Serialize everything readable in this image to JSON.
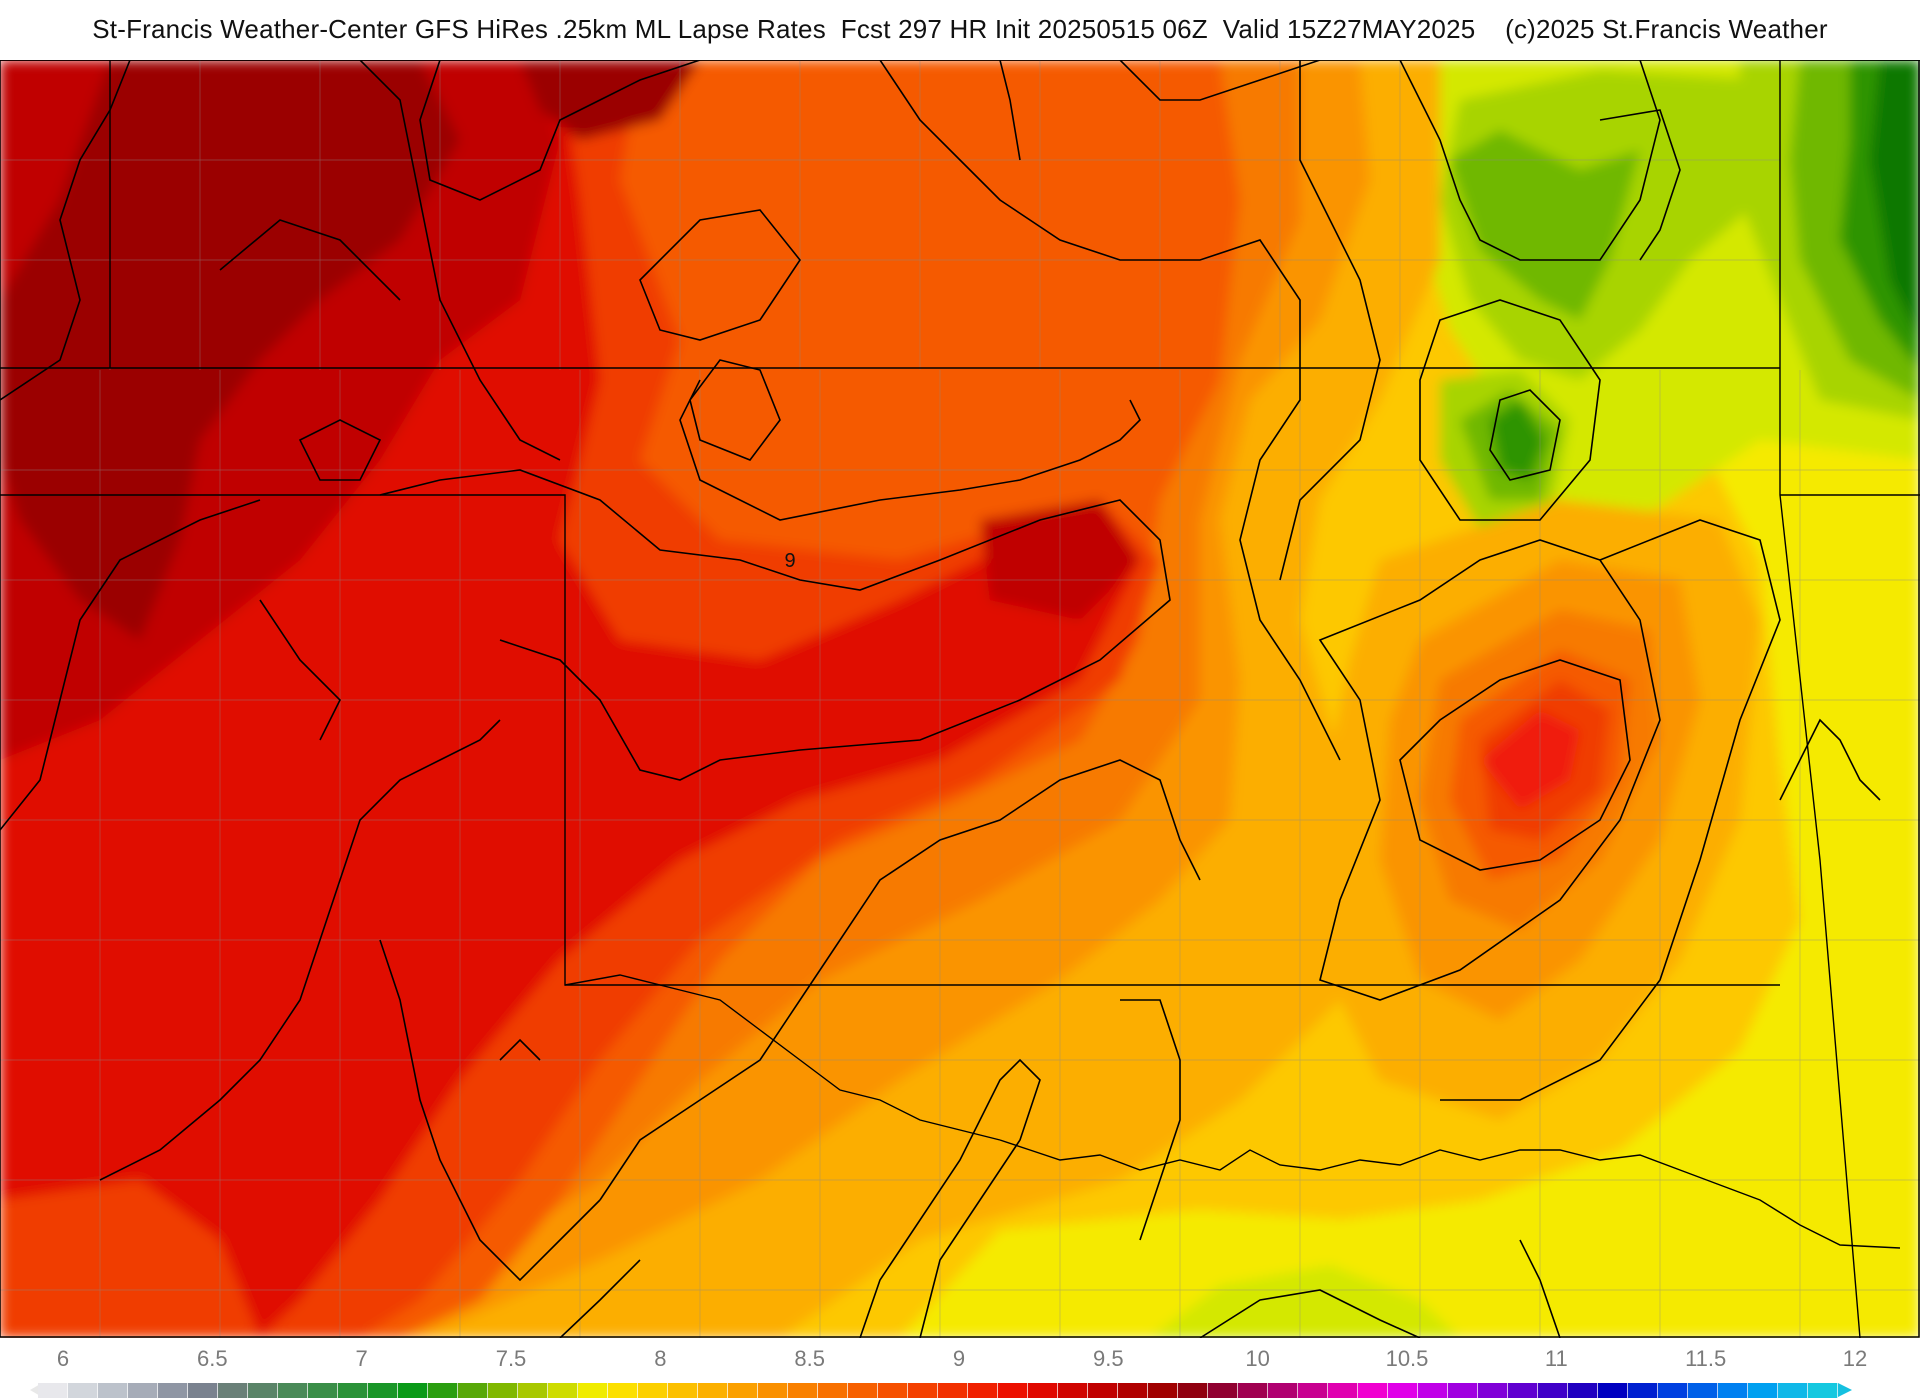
{
  "header": {
    "title": "St-Francis Weather-Center GFS HiRes .25km ML Lapse Rates  Fcst 297 HR Init 20250515 06Z  Valid 15Z27MAY2025    (c)2025 St.Francis Weather"
  },
  "map": {
    "contour_labels": [
      "9"
    ],
    "palette": {
      "dark_red": "#9b0000",
      "deep_red": "#c00000",
      "red": "#e00a00",
      "bright_red": "#f01a10",
      "red_orange": "#f03c00",
      "orange_dark": "#f55a00",
      "orange": "#f77a00",
      "orange_light": "#fa9400",
      "amber": "#fcae00",
      "gold": "#fdc800",
      "yellow": "#f5ea00",
      "yellow_green": "#d4e800",
      "lime": "#a8d400",
      "light_green": "#6fb800",
      "green": "#2e9400",
      "dark_green": "#0b7800",
      "contour": "#000000",
      "boundary": "#000000",
      "county": "#8a8a8a"
    }
  },
  "colorbar": {
    "tick_labels": [
      "6",
      "6.5",
      "7",
      "7.5",
      "8",
      "8.5",
      "9",
      "9.5",
      "10",
      "10.5",
      "11",
      "11.5",
      "12"
    ],
    "colors": [
      "#e8e8ec",
      "#d2d6dc",
      "#bcc2cb",
      "#a6acb8",
      "#8f96a4",
      "#7a828f",
      "#6a8078",
      "#5a8468",
      "#4a8a58",
      "#3a8e48",
      "#2a9238",
      "#1a9628",
      "#0a9a18",
      "#2a9e10",
      "#58a808",
      "#80b800",
      "#a8c800",
      "#cedc00",
      "#f0ec00",
      "#fce000",
      "#fcd000",
      "#fcc000",
      "#fcb000",
      "#fba000",
      "#fa9000",
      "#f98000",
      "#f87000",
      "#f76000",
      "#f65000",
      "#f44000",
      "#f23000",
      "#f02000",
      "#ec1000",
      "#e00800",
      "#d00400",
      "#c00000",
      "#b00000",
      "#a00000",
      "#900010",
      "#900030",
      "#a00050",
      "#b00070",
      "#c80090",
      "#e000b0",
      "#f000d0",
      "#e000e8",
      "#c000e8",
      "#a000e0",
      "#8000d8",
      "#6000d0",
      "#4000c8",
      "#2000c0",
      "#0000c0",
      "#0020d0",
      "#0040e0",
      "#0060e8",
      "#0080f0",
      "#00a0f0",
      "#10b8e8",
      "#15c8e0"
    ]
  }
}
